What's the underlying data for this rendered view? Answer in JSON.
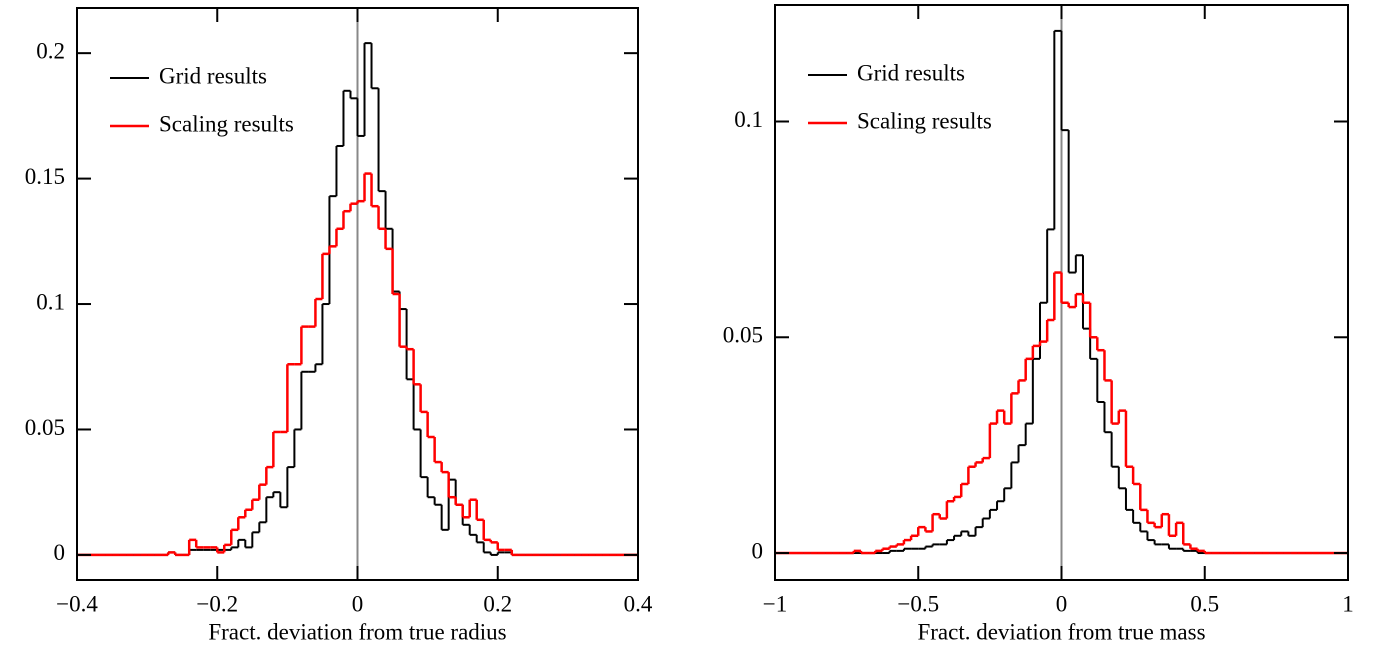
{
  "chart_data": [
    {
      "type": "histogram",
      "xlabel": "Fract. deviation from true radius",
      "xlim": [
        -0.4,
        0.4
      ],
      "ylim": [
        -0.01,
        0.218
      ],
      "xticks": [
        {
          "value": -0.4,
          "label": "−0.4"
        },
        {
          "value": -0.2,
          "label": "−0.2"
        },
        0,
        0.2,
        0.4
      ],
      "yticks": [
        0,
        0.05,
        0.1,
        0.15,
        0.2
      ],
      "reference_line_x": 0,
      "reference_line_color": "#888888",
      "legend": "upper left",
      "bins": [
        -0.4,
        -0.39,
        -0.38,
        -0.37,
        -0.36,
        -0.35,
        -0.34,
        -0.33,
        -0.32,
        -0.31,
        -0.3,
        -0.29,
        -0.28,
        -0.27,
        -0.26,
        -0.25,
        -0.24,
        -0.23,
        -0.22,
        -0.21,
        -0.2,
        -0.19,
        -0.18,
        -0.17,
        -0.16,
        -0.15,
        -0.14,
        -0.13,
        -0.12,
        -0.11,
        -0.1,
        -0.09,
        -0.08,
        -0.07,
        -0.06,
        -0.05,
        -0.04,
        -0.03,
        -0.02,
        -0.01,
        0,
        0.01,
        0.02,
        0.03,
        0.04,
        0.05,
        0.06,
        0.07,
        0.08,
        0.09,
        0.1,
        0.11,
        0.12,
        0.13,
        0.14,
        0.15,
        0.16,
        0.17,
        0.18,
        0.19,
        0.2,
        0.21,
        0.22,
        0.23,
        0.24,
        0.25,
        0.26,
        0.27,
        0.28,
        0.29,
        0.3,
        0.31,
        0.32,
        0.33,
        0.34,
        0.35,
        0.36,
        0.37,
        0.38,
        0.39,
        0.4
      ],
      "series": [
        {
          "name": "Grid results",
          "color": "#000000",
          "values": [
            0,
            0,
            0,
            0,
            0,
            0,
            0,
            0,
            0,
            0,
            0,
            0,
            0,
            0.001,
            0,
            0,
            0.002,
            0.002,
            0.002,
            0.002,
            0.002,
            0.002,
            0.003,
            0.006,
            0.003,
            0.009,
            0.013,
            0.023,
            0.025,
            0.019,
            0.035,
            0.05,
            0.073,
            0.073,
            0.076,
            0.1,
            0.143,
            0.163,
            0.185,
            0.182,
            0.167,
            0.204,
            0.186,
            0.145,
            0.13,
            0.105,
            0.098,
            0.07,
            0.05,
            0.031,
            0.023,
            0.02,
            0.01,
            0.03,
            0.02,
            0.012,
            0.008,
            0.005,
            0.001,
            0,
            0.001,
            0.001,
            0,
            0,
            0,
            0,
            0,
            0,
            0,
            0,
            0,
            0,
            0,
            0,
            0,
            0,
            0,
            0,
            0,
            0
          ]
        },
        {
          "name": "Scaling results",
          "color": "#ff0000",
          "values": [
            0,
            0,
            0,
            0,
            0,
            0,
            0,
            0,
            0,
            0,
            0,
            0,
            0,
            0.001,
            0,
            0,
            0.006,
            0.003,
            0.003,
            0.003,
            0.001,
            0.004,
            0.01,
            0.015,
            0.018,
            0.022,
            0.028,
            0.035,
            0.049,
            0.049,
            0.076,
            0.076,
            0.091,
            0.091,
            0.102,
            0.12,
            0.123,
            0.13,
            0.137,
            0.14,
            0.141,
            0.152,
            0.139,
            0.13,
            0.122,
            0.104,
            0.083,
            0.082,
            0.068,
            0.057,
            0.047,
            0.037,
            0.033,
            0.023,
            0.02,
            0.015,
            0.022,
            0.014,
            0.006,
            0.005,
            0.002,
            0.002,
            0,
            0,
            0,
            0,
            0,
            0,
            0,
            0,
            0,
            0,
            0,
            0,
            0,
            0,
            0,
            0,
            0,
            0
          ]
        }
      ]
    },
    {
      "type": "histogram",
      "xlabel": "Fract. deviation from true mass",
      "xlim": [
        -1,
        1
      ],
      "ylim": [
        -0.00625,
        0.127
      ],
      "xticks": [
        {
          "value": -1,
          "label": "−1"
        },
        {
          "value": -0.5,
          "label": "−0.5"
        },
        0,
        0.5,
        1
      ],
      "yticks": [
        0,
        0.05,
        0.1
      ],
      "reference_line_x": 0,
      "reference_line_color": "#888888",
      "legend": "upper left",
      "bins": [
        -1,
        -0.975,
        -0.95,
        -0.925,
        -0.9,
        -0.875,
        -0.85,
        -0.825,
        -0.8,
        -0.775,
        -0.75,
        -0.725,
        -0.7,
        -0.675,
        -0.65,
        -0.625,
        -0.6,
        -0.575,
        -0.55,
        -0.525,
        -0.5,
        -0.475,
        -0.45,
        -0.425,
        -0.4,
        -0.375,
        -0.35,
        -0.325,
        -0.3,
        -0.275,
        -0.25,
        -0.225,
        -0.2,
        -0.175,
        -0.15,
        -0.125,
        -0.1,
        -0.075,
        -0.05,
        -0.025,
        0,
        0.025,
        0.05,
        0.075,
        0.1,
        0.125,
        0.15,
        0.175,
        0.2,
        0.225,
        0.25,
        0.275,
        0.3,
        0.325,
        0.35,
        0.375,
        0.4,
        0.425,
        0.45,
        0.475,
        0.5,
        0.525,
        0.55,
        0.575,
        0.6,
        0.625,
        0.65,
        0.675,
        0.7,
        0.725,
        0.75,
        0.775,
        0.8,
        0.825,
        0.85,
        0.875,
        0.9,
        0.925,
        0.95,
        0.975,
        1
      ],
      "series": [
        {
          "name": "Grid results",
          "color": "#000000",
          "values": [
            0,
            0,
            0,
            0,
            0,
            0,
            0,
            0,
            0,
            0,
            0,
            0,
            0,
            0,
            0,
            0,
            0.0005,
            0.0005,
            0.001,
            0.001,
            0.001,
            0.0015,
            0.002,
            0.002,
            0.003,
            0.004,
            0.005,
            0.004,
            0.006,
            0.008,
            0.01,
            0.012,
            0.015,
            0.021,
            0.025,
            0.03,
            0.045,
            0.058,
            0.075,
            0.121,
            0.098,
            0.065,
            0.069,
            0.052,
            0.045,
            0.035,
            0.028,
            0.02,
            0.015,
            0.01,
            0.007,
            0.005,
            0.003,
            0.002,
            0.002,
            0.001,
            0.001,
            0.0005,
            0.0005,
            0,
            0,
            0,
            0,
            0,
            0,
            0,
            0,
            0,
            0,
            0,
            0,
            0,
            0,
            0,
            0,
            0,
            0,
            0,
            0,
            0
          ]
        },
        {
          "name": "Scaling results",
          "color": "#ff0000",
          "values": [
            0,
            0,
            0,
            0,
            0,
            0,
            0,
            0,
            0,
            0,
            0,
            0.0005,
            0,
            0,
            0.0005,
            0.001,
            0.0015,
            0.002,
            0.003,
            0.004,
            0.006,
            0.005,
            0.009,
            0.008,
            0.012,
            0.013,
            0.016,
            0.02,
            0.021,
            0.022,
            0.03,
            0.033,
            0.03,
            0.037,
            0.04,
            0.045,
            0.048,
            0.049,
            0.054,
            0.065,
            0.058,
            0.057,
            0.06,
            0.058,
            0.05,
            0.047,
            0.04,
            0.03,
            0.033,
            0.02,
            0.016,
            0.01,
            0.007,
            0.006,
            0.009,
            0.004,
            0.007,
            0.002,
            0.001,
            0.0005,
            0,
            0,
            0,
            0,
            0,
            0,
            0,
            0,
            0,
            0,
            0,
            0,
            0,
            0,
            0,
            0,
            0,
            0,
            0,
            0
          ]
        }
      ]
    }
  ]
}
